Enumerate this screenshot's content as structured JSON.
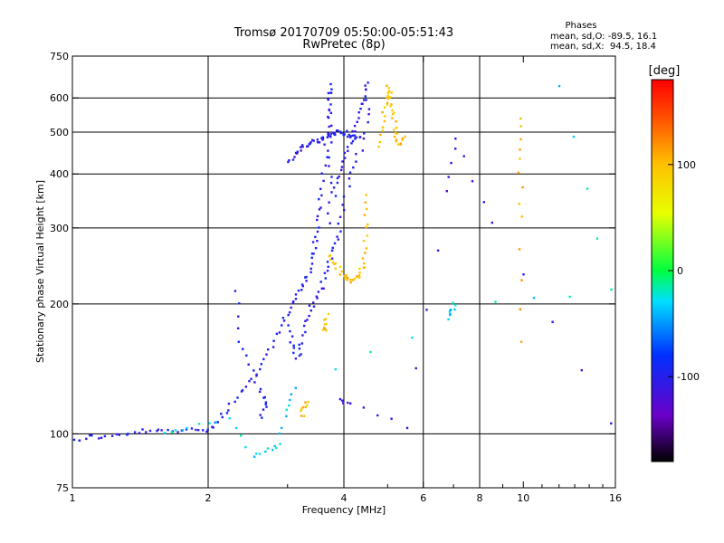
{
  "chart_data": {
    "type": "scatter",
    "title": "Tromsø 20170709 05:50:00-05:51:43",
    "subtitle": "RwPretec (8p)",
    "xlabel": "Frequency [MHz]",
    "ylabel": "Stationary phase Virtual Height [km]",
    "xscale": "log",
    "yscale": "log",
    "xlim": [
      1,
      16
    ],
    "ylim": [
      75,
      750
    ],
    "x_ticks": [
      1,
      2,
      4,
      6,
      8,
      10,
      16
    ],
    "x_tick_labels": [
      "1",
      "2",
      "4",
      "6",
      "8",
      "10",
      "16"
    ],
    "x_major_grid": [
      2,
      4,
      8,
      16
    ],
    "x_minor_grid": [
      6
    ],
    "y_ticks": [
      75,
      100,
      200,
      300,
      400,
      500,
      600,
      750
    ],
    "y_tick_labels": [
      "75",
      "100",
      "200",
      "300",
      "400",
      "500",
      "600",
      "750"
    ],
    "grid": true,
    "phase_box": {
      "heading": "Phases",
      "line1": "mean, sd,O: -89.5, 16.1",
      "line2": "mean, sd,X:  94.5, 18.4"
    },
    "colorbar": {
      "label": "[deg]",
      "range": [
        -180,
        180
      ],
      "ticks": [
        -100,
        0,
        100
      ],
      "tick_labels": [
        "-100",
        "0",
        "100"
      ]
    },
    "series": [
      {
        "color_value": -100,
        "curves": [
          {
            "x": [
              1.0,
              1.08,
              1.18,
              1.3,
              1.42,
              1.55,
              1.7,
              1.85,
              2.0,
              2.1,
              2.2,
              2.35,
              2.5,
              2.65,
              2.8,
              2.95,
              3.05,
              3.15,
              3.25,
              3.35,
              3.4,
              3.45,
              3.5,
              3.55,
              3.6,
              3.65,
              3.7
            ],
            "y": [
              97,
              99,
              99,
              100,
              102,
              102,
              102,
              103,
              103,
              108,
              115,
              125,
              135,
              148,
              165,
              185,
              200,
              215,
              225,
              245,
              265,
              290,
              320,
              360,
              420,
              520,
              620
            ]
          },
          {
            "x": [
              2.95,
              3.05,
              3.12,
              3.2,
              3.28,
              3.35,
              3.45,
              3.55,
              3.65,
              3.75,
              3.85,
              3.95,
              4.1,
              4.25
            ],
            "y": [
              185,
              165,
              150,
              160,
              178,
              195,
              205,
              220,
              240,
              265,
              290,
              330,
              390,
              450
            ]
          },
          {
            "x": [
              3.0,
              3.1,
              3.2,
              3.3,
              3.4,
              3.5,
              3.6,
              3.7,
              3.8,
              3.9,
              4.0,
              4.1,
              4.2,
              4.3
            ],
            "y": [
              430,
              445,
              460,
              470,
              480,
              480,
              490,
              495,
              500,
              505,
              500,
              495,
              490,
              485
            ]
          },
          {
            "x": [
              3.7,
              3.7,
              3.7,
              3.7,
              3.7,
              3.7
            ],
            "y": [
              310,
              380,
              460,
              540,
              600,
              650
            ]
          },
          {
            "x": [
              3.8,
              3.9,
              4.0,
              4.1,
              4.2,
              4.3,
              4.4,
              4.5,
              4.5,
              4.4
            ],
            "y": [
              360,
              400,
              440,
              470,
              510,
              560,
              600,
              650,
              550,
              460
            ]
          },
          {
            "x": [
              2.3,
              2.35,
              2.5,
              2.6,
              2.7,
              2.6
            ],
            "y": [
              215,
              165,
              140,
              125,
              118,
              110
            ]
          }
        ]
      },
      {
        "color_value": 100,
        "curves": [
          {
            "x": [
              3.7,
              3.8,
              3.9,
              4.0,
              4.1,
              4.2,
              4.3,
              4.4,
              4.45,
              4.45,
              4.45
            ],
            "y": [
              260,
              250,
              240,
              232,
              228,
              230,
              235,
              245,
              270,
              310,
              360
            ]
          },
          {
            "x": [
              4.8,
              4.85,
              4.9,
              4.95,
              5.0,
              5.05,
              5.1,
              5.15,
              5.2,
              5.3,
              5.4
            ],
            "y": [
              470,
              520,
              570,
              610,
              640,
              600,
              560,
              520,
              490,
              470,
              490
            ]
          },
          {
            "x": [
              3.6,
              3.62,
              3.65
            ],
            "y": [
              175,
              180,
              190
            ]
          },
          {
            "x": [
              3.2,
              3.25,
              3.3
            ],
            "y": [
              110,
              115,
              120
            ]
          }
        ]
      },
      {
        "color_value": -30,
        "curves": [
          {
            "x": [
              1.6,
              1.8,
              2.2,
              2.5,
              2.7,
              2.85,
              3.0,
              3.1,
              6.8,
              6.9,
              7.0,
              15.5,
              12.0
            ],
            "y": [
              100,
              104,
              108,
              90,
              92,
              95,
              115,
              128,
              185,
              195,
              200,
              215,
              650
            ]
          }
        ]
      },
      {
        "color_value": -110,
        "curves": [
          {
            "x": [
              3.9,
              4.1,
              5.5,
              6.8,
              7.0,
              8.5,
              15.5
            ],
            "y": [
              120,
              118,
              105,
              370,
              490,
              310,
              107
            ]
          }
        ]
      },
      {
        "color_value": 110,
        "curves": [
          {
            "x": [
              9.8,
              9.8,
              9.8,
              9.9
            ],
            "y": [
              165,
              320,
              440,
              540
            ]
          }
        ]
      }
    ]
  }
}
